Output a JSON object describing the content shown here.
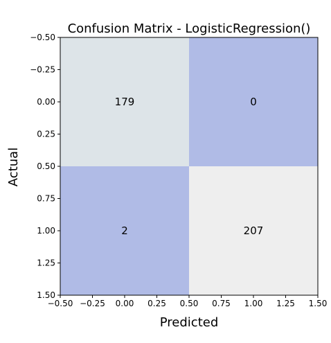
{
  "chart_data": {
    "type": "heatmap",
    "title": "Confusion Matrix - LogisticRegression()",
    "xlabel": "Predicted",
    "ylabel": "Actual",
    "xlim": [
      -0.5,
      1.5
    ],
    "ylim": [
      1.5,
      -0.5
    ],
    "y_axis_inverted": true,
    "grid": false,
    "xticks": [
      -0.5,
      -0.25,
      0.0,
      0.25,
      0.5,
      0.75,
      1.0,
      1.25,
      1.5
    ],
    "xtick_labels": [
      "−0.50",
      "−0.25",
      "0.00",
      "0.25",
      "0.50",
      "0.75",
      "1.00",
      "1.25",
      "1.50"
    ],
    "yticks": [
      -0.5,
      -0.25,
      0.0,
      0.25,
      0.5,
      0.75,
      1.0,
      1.25,
      1.5
    ],
    "ytick_labels": [
      "−0.50",
      "−0.25",
      "0.00",
      "0.25",
      "0.50",
      "0.75",
      "1.00",
      "1.25",
      "1.50"
    ],
    "matrix": [
      [
        179,
        0
      ],
      [
        2,
        207
      ]
    ],
    "cell_colors": [
      [
        "#dde4e8",
        "#b0bbe6"
      ],
      [
        "#b0bbe6",
        "#eeeeee"
      ]
    ]
  }
}
